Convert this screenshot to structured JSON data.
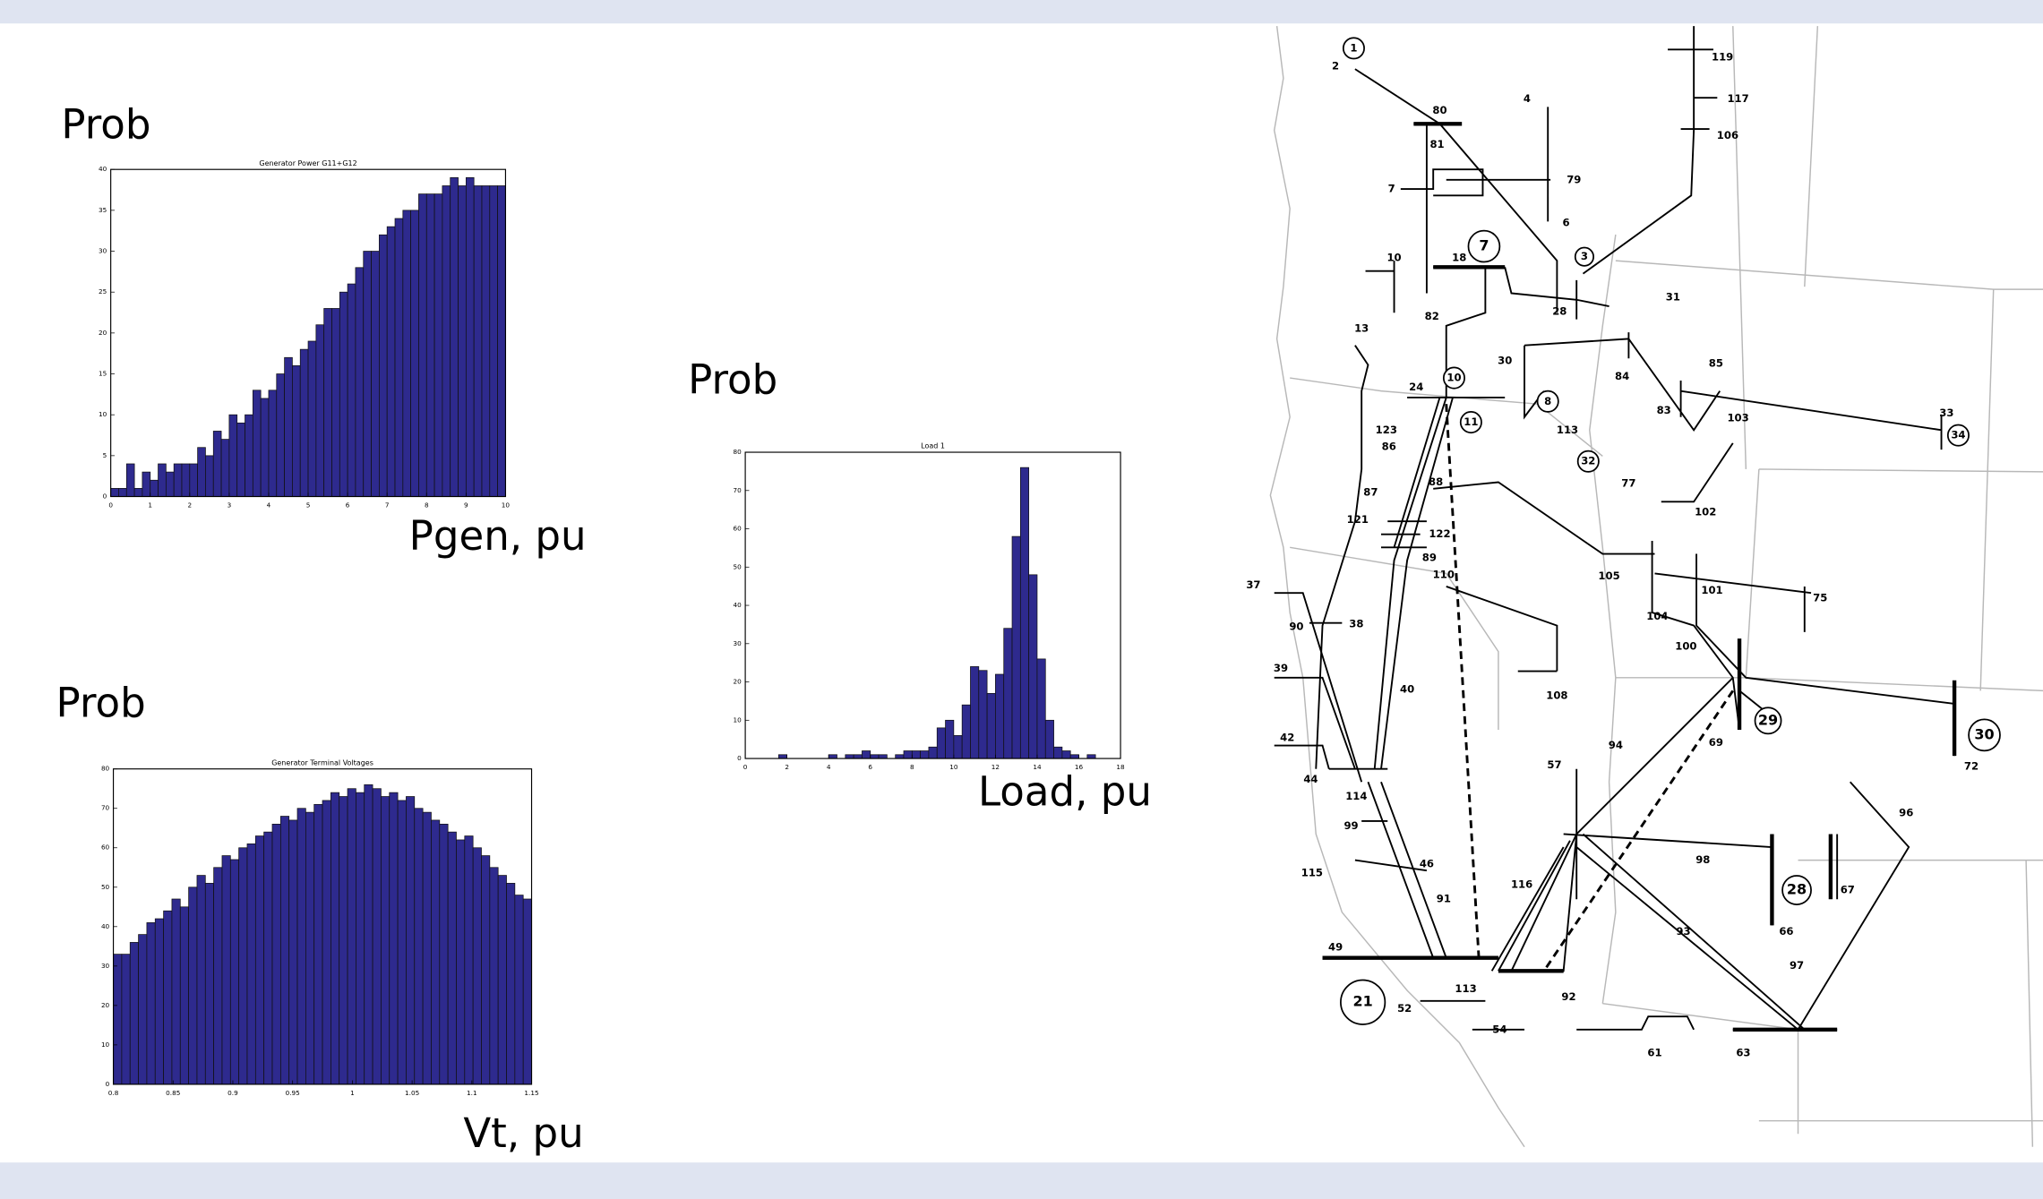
{
  "chart_data": [
    {
      "type": "histogram",
      "title": "Generator Power G11+G12",
      "ylabel": "Prob",
      "xlabel": "Pgen, pu",
      "color": "#2e2a8e",
      "bins": [
        0,
        0.2,
        0.4,
        0.6,
        0.8,
        1,
        1.2,
        1.4,
        1.6,
        1.8,
        2,
        2.2,
        2.4,
        2.6,
        2.8,
        3,
        3.2,
        3.4,
        3.6,
        3.8,
        4,
        4.2,
        4.4,
        4.6,
        4.8,
        5,
        5.2,
        5.4,
        5.6,
        5.8,
        6,
        6.2,
        6.4,
        6.6,
        6.8,
        7,
        7.2,
        7.4,
        7.6,
        7.8,
        8,
        8.2,
        8.4,
        8.6,
        8.8,
        9,
        9.2,
        9.4,
        9.6,
        9.8,
        10
      ],
      "values": [
        1,
        1,
        4,
        1,
        3,
        2,
        4,
        3,
        4,
        4,
        4,
        6,
        5,
        8,
        7,
        10,
        9,
        10,
        13,
        12,
        13,
        15,
        17,
        16,
        18,
        19,
        21,
        23,
        23,
        25,
        26,
        28,
        30,
        30,
        32,
        33,
        34,
        35,
        35,
        37,
        37,
        37,
        38,
        39,
        38,
        39,
        38,
        38,
        38,
        38
      ],
      "xlim": [
        0,
        10
      ],
      "xticks": [
        0,
        1,
        2,
        3,
        4,
        5,
        6,
        7,
        8,
        9,
        10
      ],
      "ylim": [
        0,
        40
      ],
      "yticks": [
        0,
        5,
        10,
        15,
        20,
        25,
        30,
        35,
        40
      ]
    },
    {
      "type": "histogram",
      "title": "Generator Terminal Voltages",
      "ylabel": "Prob",
      "xlabel": "Vt, pu",
      "color": "#2e2a8e",
      "bins": [
        0.8,
        0.807,
        0.814,
        0.821,
        0.828,
        0.835,
        0.842,
        0.849,
        0.856,
        0.863,
        0.87,
        0.877,
        0.884,
        0.891,
        0.898,
        0.905,
        0.912,
        0.919,
        0.926,
        0.933,
        0.94,
        0.947,
        0.954,
        0.961,
        0.968,
        0.975,
        0.982,
        0.989,
        0.996,
        1.003,
        1.01,
        1.017,
        1.024,
        1.031,
        1.038,
        1.045,
        1.052,
        1.059,
        1.066,
        1.073,
        1.08,
        1.087,
        1.094,
        1.101,
        1.108,
        1.115,
        1.122,
        1.129,
        1.136,
        1.143,
        1.15
      ],
      "values": [
        33,
        33,
        36,
        38,
        41,
        42,
        44,
        47,
        45,
        50,
        53,
        51,
        55,
        58,
        57,
        60,
        61,
        63,
        64,
        66,
        68,
        67,
        70,
        69,
        71,
        72,
        74,
        73,
        75,
        74,
        76,
        75,
        73,
        74,
        72,
        73,
        70,
        69,
        67,
        66,
        64,
        62,
        63,
        60,
        58,
        55,
        53,
        51,
        48,
        47
      ],
      "xlim": [
        0.8,
        1.15
      ],
      "xticks": [
        0.8,
        0.85,
        0.9,
        0.95,
        1,
        1.05,
        1.1,
        1.15
      ],
      "ylim": [
        0,
        80
      ],
      "yticks": [
        0,
        10,
        20,
        30,
        40,
        50,
        60,
        70,
        80
      ]
    },
    {
      "type": "histogram",
      "title": "Load 1",
      "ylabel": "Prob",
      "xlabel": "Load, pu",
      "color": "#2e2a8e",
      "bins": [
        0,
        0.4,
        0.8,
        1.2,
        1.6,
        2,
        2.4,
        2.8,
        3.2,
        3.6,
        4,
        4.4,
        4.8,
        5.2,
        5.6,
        6,
        6.4,
        6.8,
        7.2,
        7.6,
        8,
        8.4,
        8.8,
        9.2,
        9.6,
        10,
        10.4,
        10.8,
        11.2,
        11.6,
        12,
        12.4,
        12.8,
        13.2,
        13.6,
        14,
        14.4,
        14.8,
        15.2,
        15.6,
        16,
        16.4,
        16.8,
        17.2,
        17.6,
        18
      ],
      "values": [
        0,
        0,
        0,
        0,
        1,
        0,
        0,
        0,
        0,
        0,
        1,
        0,
        1,
        1,
        2,
        1,
        1,
        0,
        1,
        2,
        2,
        2,
        3,
        8,
        10,
        6,
        14,
        24,
        23,
        17,
        22,
        34,
        58,
        76,
        48,
        26,
        10,
        3,
        2,
        1,
        0,
        1,
        0,
        0,
        0
      ],
      "xlim": [
        0,
        18
      ],
      "xticks": [
        0,
        2,
        4,
        6,
        8,
        10,
        12,
        14,
        16,
        18
      ],
      "ylim": [
        0,
        80
      ],
      "yticks": [
        0,
        10,
        20,
        30,
        40,
        50,
        60,
        70,
        80
      ]
    }
  ],
  "map": {
    "bus_labels": [
      "119",
      "117",
      "106",
      "1",
      "2",
      "80",
      "81",
      "79",
      "4",
      "7",
      "6",
      "3",
      "7",
      "18",
      "10",
      "82",
      "28",
      "31",
      "13",
      "30",
      "24",
      "10",
      "11",
      "8",
      "113",
      "84",
      "85",
      "83",
      "103",
      "33",
      "34",
      "123",
      "86",
      "32",
      "77",
      "87",
      "88",
      "102",
      "121",
      "122",
      "89",
      "105",
      "110",
      "101",
      "75",
      "37",
      "104",
      "90",
      "38",
      "100",
      "40",
      "108",
      "39",
      "29",
      "30",
      "72",
      "69",
      "42",
      "44",
      "57",
      "94",
      "114",
      "96",
      "99",
      "98",
      "28",
      "67",
      "46",
      "115",
      "116",
      "91",
      "93",
      "66",
      "97",
      "49",
      "21",
      "113",
      "52",
      "92",
      "54",
      "61",
      "63"
    ]
  }
}
